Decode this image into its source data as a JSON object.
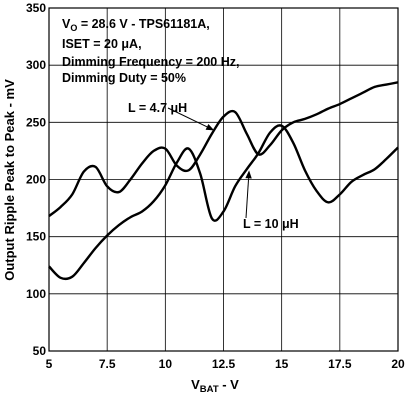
{
  "chart_data": {
    "type": "line",
    "xlabel": {
      "main": "V",
      "sub": "BAT",
      "suffix": " - V"
    },
    "ylabel": "Output Ripple Peak to Peak - mV",
    "xlim": [
      5,
      20
    ],
    "ylim": [
      50,
      350
    ],
    "xticks": [
      5,
      7.5,
      10,
      12.5,
      15,
      17.5,
      20
    ],
    "yticks": [
      50,
      100,
      150,
      200,
      250,
      300,
      350
    ],
    "xtick_labels": [
      "5",
      "7.5",
      "10",
      "12.5",
      "15",
      "17.5",
      "20"
    ],
    "ytick_labels": [
      "50",
      "100",
      "150",
      "200",
      "250",
      "300",
      "350"
    ],
    "grid": true,
    "conditions": [
      {
        "text": "V",
        "sub": "O",
        "rest": " = 28.6 V - TPS61181A,"
      },
      {
        "text": "ISET = 20 μA,"
      },
      {
        "text": "Dimming Frequency = 200 Hz,"
      },
      {
        "text": "Dimming Duty = 50%"
      }
    ],
    "series": [
      {
        "name": "L = 4.7 μH",
        "x": [
          5,
          5.5,
          6,
          6.5,
          7,
          7.5,
          8,
          8.5,
          9,
          9.5,
          10,
          10.5,
          11,
          11.5,
          12,
          12.5,
          13,
          13.5,
          14,
          14.5,
          15,
          15.5,
          16,
          16.5,
          17,
          17.5,
          18,
          18.5,
          19,
          19.5,
          20
        ],
        "values": [
          168,
          176,
          187,
          207,
          211,
          194,
          189,
          200,
          214,
          225,
          227,
          212,
          208,
          222,
          240,
          255,
          259,
          240,
          222,
          230,
          243,
          250,
          253,
          257,
          262,
          266,
          271,
          276,
          281,
          283,
          285
        ]
      },
      {
        "name": "L = 10 μH",
        "x": [
          5,
          5.5,
          6,
          6.5,
          7,
          7.5,
          8,
          8.5,
          9,
          9.5,
          10,
          10.5,
          11,
          11.5,
          12,
          12.5,
          13,
          13.5,
          14,
          14.5,
          15,
          15.5,
          16,
          16.5,
          17,
          17.5,
          18,
          18.5,
          19,
          19.5,
          20
        ],
        "values": [
          124,
          114,
          115,
          127,
          140,
          151,
          160,
          167,
          172,
          181,
          195,
          215,
          227,
          205,
          166,
          172,
          194,
          209,
          223,
          241,
          247,
          232,
          208,
          190,
          180,
          187,
          198,
          204,
          209,
          218,
          228
        ]
      }
    ]
  },
  "annotations": [
    {
      "label": "L = 4.7 μH",
      "series": 0,
      "target_x": 12.1,
      "target_y": 243
    },
    {
      "label": "L = 10 μH",
      "series": 1,
      "target_x": 13.6,
      "target_y": 208
    }
  ]
}
